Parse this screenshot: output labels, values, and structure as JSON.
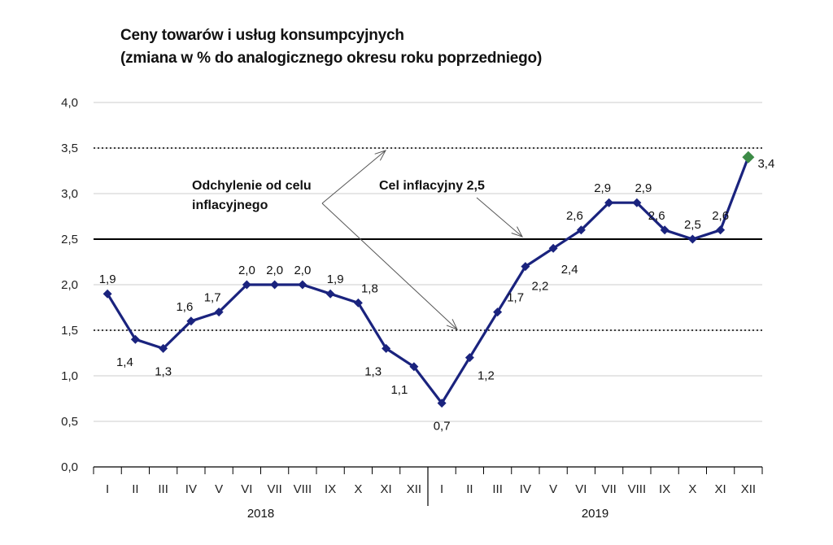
{
  "title": {
    "line1": "Ceny towarów i usług konsumpcyjnych",
    "line2": "(zmiana w % do analogicznego okresu roku poprzedniego)"
  },
  "annotations": {
    "deviation_line1": "Odchylenie od celu",
    "deviation_line2": "inflacyjnego",
    "target": "Cel inflacyjny 2,5"
  },
  "colors": {
    "series": "#1a237e",
    "last_point": "#3d8b47",
    "grid": "#cccccc",
    "target_line": "#000000"
  },
  "chart_data": {
    "type": "line",
    "title": "Ceny towarów i usług konsumpcyjnych (zmiana w % do analogicznego okresu roku poprzedniego)",
    "xlabel": "",
    "ylabel": "",
    "ylim": [
      0,
      4
    ],
    "yticks": [
      "0,0",
      "0,5",
      "1,0",
      "1,5",
      "2,0",
      "2,5",
      "3,0",
      "3,5",
      "4,0"
    ],
    "years": [
      "2018",
      "2019"
    ],
    "categories": [
      "I",
      "II",
      "III",
      "IV",
      "V",
      "VI",
      "VII",
      "VIII",
      "IX",
      "X",
      "XI",
      "XII",
      "I",
      "II",
      "III",
      "IV",
      "V",
      "VI",
      "VII",
      "VIII",
      "IX",
      "X",
      "XI",
      "XII"
    ],
    "series": [
      {
        "values": [
          1.9,
          1.4,
          1.3,
          1.6,
          1.7,
          2.0,
          2.0,
          2.0,
          1.9,
          1.8,
          1.3,
          1.1,
          0.7,
          1.2,
          1.7,
          2.2,
          2.4,
          2.6,
          2.9,
          2.9,
          2.6,
          2.5,
          2.6,
          3.4
        ],
        "labels": [
          "1,9",
          "1,4",
          "1,3",
          "1,6",
          "1,7",
          "2,0",
          "2,0",
          "2,0",
          "1,9",
          "1,8",
          "1,3",
          "1,1",
          "0,7",
          "1,2",
          "1,7",
          "2,2",
          "2,4",
          "2,6",
          "2,9",
          "2,9",
          "2,6",
          "2,5",
          "2,6",
          "3,4"
        ]
      }
    ],
    "target": 2.5,
    "tolerance_band": [
      1.5,
      3.5
    ],
    "grid": true,
    "legend": "none"
  }
}
